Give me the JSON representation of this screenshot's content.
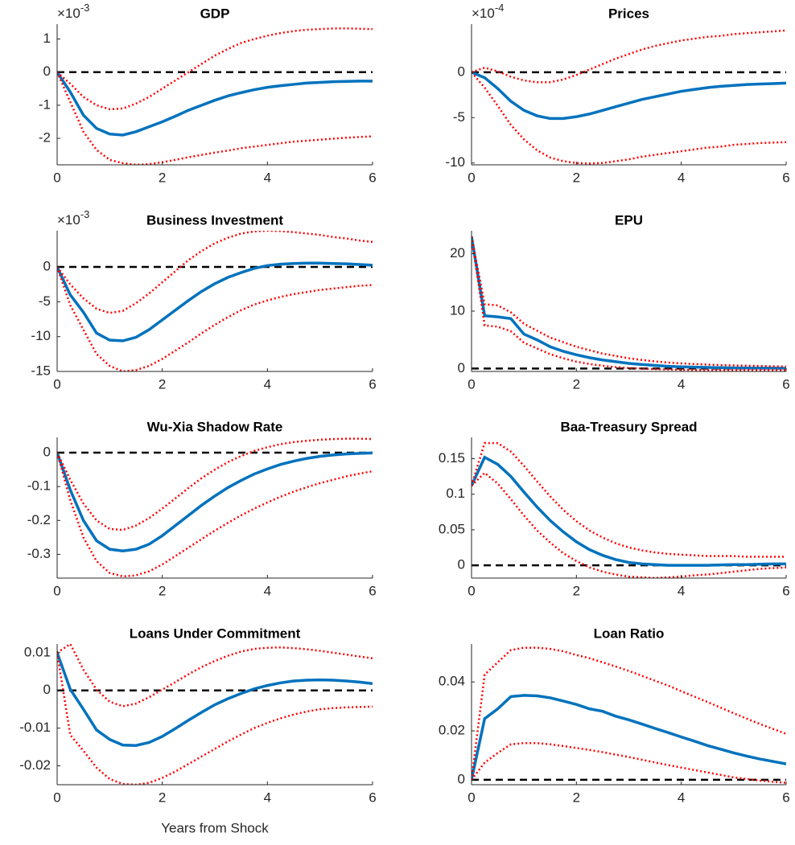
{
  "chart_data": [
    {
      "type": "line",
      "title": "GDP",
      "exponent_label": {
        "base": "×10",
        "power": "-3"
      },
      "x": [
        0,
        0.25,
        0.5,
        0.75,
        1,
        1.25,
        1.5,
        1.75,
        2,
        2.25,
        2.5,
        2.75,
        3,
        3.25,
        3.5,
        3.75,
        4,
        4.25,
        4.5,
        4.75,
        5,
        5.25,
        5.5,
        5.75,
        6
      ],
      "xlim": [
        0,
        6
      ],
      "xticks": [
        0,
        2,
        4,
        6
      ],
      "ylim": [
        -2.8,
        1.45
      ],
      "yticks": [
        -2,
        -1,
        0,
        1
      ],
      "hline": 0,
      "series": [
        {
          "color": "#0072bd",
          "style": "solid",
          "values": [
            0,
            -0.6,
            -1.3,
            -1.7,
            -1.87,
            -1.9,
            -1.8,
            -1.65,
            -1.5,
            -1.33,
            -1.15,
            -1.0,
            -0.85,
            -0.72,
            -0.62,
            -0.53,
            -0.46,
            -0.41,
            -0.37,
            -0.33,
            -0.31,
            -0.29,
            -0.28,
            -0.27,
            -0.27
          ]
        },
        {
          "color": "#ff0000",
          "style": "dotted",
          "values": [
            0,
            -0.35,
            -0.75,
            -1.0,
            -1.12,
            -1.1,
            -0.95,
            -0.75,
            -0.5,
            -0.25,
            0,
            0.25,
            0.5,
            0.7,
            0.88,
            1.0,
            1.1,
            1.18,
            1.24,
            1.28,
            1.3,
            1.32,
            1.32,
            1.31,
            1.3
          ]
        },
        {
          "color": "#ff0000",
          "style": "dotted",
          "values": [
            0,
            -0.9,
            -1.8,
            -2.35,
            -2.65,
            -2.75,
            -2.8,
            -2.78,
            -2.72,
            -2.65,
            -2.57,
            -2.5,
            -2.43,
            -2.37,
            -2.3,
            -2.25,
            -2.2,
            -2.15,
            -2.1,
            -2.07,
            -2.04,
            -2.01,
            -1.98,
            -1.96,
            -1.94
          ]
        }
      ]
    },
    {
      "type": "line",
      "title": "Prices",
      "exponent_label": {
        "base": "×10",
        "power": "-4"
      },
      "x": [
        0,
        0.25,
        0.5,
        0.75,
        1,
        1.25,
        1.5,
        1.75,
        2,
        2.25,
        2.5,
        2.75,
        3,
        3.25,
        3.5,
        3.75,
        4,
        4.25,
        4.5,
        4.75,
        5,
        5.25,
        5.5,
        5.75,
        6
      ],
      "xlim": [
        0,
        6
      ],
      "xticks": [
        0,
        2,
        4,
        6
      ],
      "ylim": [
        -10.2,
        5.3
      ],
      "yticks": [
        -10,
        -5,
        0
      ],
      "hline": 0,
      "series": [
        {
          "color": "#0072bd",
          "style": "solid",
          "values": [
            0,
            -0.6,
            -1.8,
            -3.2,
            -4.2,
            -4.8,
            -5.1,
            -5.1,
            -4.9,
            -4.6,
            -4.2,
            -3.8,
            -3.4,
            -3.0,
            -2.7,
            -2.4,
            -2.1,
            -1.9,
            -1.7,
            -1.55,
            -1.45,
            -1.35,
            -1.3,
            -1.25,
            -1.2
          ]
        },
        {
          "color": "#ff0000",
          "style": "dotted",
          "values": [
            0,
            0.5,
            0.1,
            -0.5,
            -0.9,
            -1.1,
            -1.1,
            -0.8,
            -0.3,
            0.3,
            0.9,
            1.5,
            2.0,
            2.5,
            2.9,
            3.2,
            3.5,
            3.7,
            3.9,
            4.0,
            4.2,
            4.3,
            4.4,
            4.5,
            4.6
          ]
        },
        {
          "color": "#ff0000",
          "style": "dotted",
          "values": [
            0,
            -1.7,
            -3.7,
            -5.8,
            -7.4,
            -8.6,
            -9.4,
            -9.8,
            -10.0,
            -10.05,
            -10.0,
            -9.8,
            -9.6,
            -9.3,
            -9.1,
            -8.9,
            -8.7,
            -8.5,
            -8.3,
            -8.2,
            -8.0,
            -7.9,
            -7.8,
            -7.75,
            -7.7
          ]
        }
      ]
    },
    {
      "type": "line",
      "title": "Business Investment",
      "exponent_label": {
        "base": "×10",
        "power": "-3"
      },
      "x": [
        0,
        0.25,
        0.5,
        0.75,
        1,
        1.25,
        1.5,
        1.75,
        2,
        2.25,
        2.5,
        2.75,
        3,
        3.25,
        3.5,
        3.75,
        4,
        4.25,
        4.5,
        4.75,
        5,
        5.25,
        5.5,
        5.75,
        6
      ],
      "xlim": [
        0,
        6
      ],
      "xticks": [
        0,
        2,
        4,
        6
      ],
      "ylim": [
        -15,
        5.2
      ],
      "yticks": [
        -15,
        -10,
        -5,
        0
      ],
      "hline": 0,
      "series": [
        {
          "color": "#0072bd",
          "style": "solid",
          "values": [
            0,
            -4,
            -6.5,
            -9.5,
            -10.5,
            -10.6,
            -10.1,
            -9.0,
            -7.6,
            -6.2,
            -4.8,
            -3.5,
            -2.4,
            -1.5,
            -0.8,
            -0.2,
            0.2,
            0.4,
            0.5,
            0.55,
            0.55,
            0.5,
            0.45,
            0.35,
            0.25
          ]
        },
        {
          "color": "#ff0000",
          "style": "dotted",
          "values": [
            0,
            -2.5,
            -4.5,
            -6.0,
            -6.6,
            -6.3,
            -5.2,
            -3.8,
            -2.2,
            -0.6,
            1.0,
            2.3,
            3.4,
            4.2,
            4.8,
            5.1,
            5.2,
            5.15,
            5.0,
            4.8,
            4.6,
            4.3,
            4.1,
            3.8,
            3.6
          ]
        },
        {
          "color": "#ff0000",
          "style": "dotted",
          "values": [
            0,
            -5.5,
            -9,
            -12.5,
            -14.2,
            -15,
            -14.8,
            -14.2,
            -13.2,
            -12,
            -10.8,
            -9.5,
            -8.3,
            -7.2,
            -6.2,
            -5.4,
            -4.8,
            -4.3,
            -3.9,
            -3.6,
            -3.3,
            -3.1,
            -2.9,
            -2.7,
            -2.6
          ]
        }
      ]
    },
    {
      "type": "line",
      "title": "EPU",
      "x": [
        0,
        0.25,
        0.5,
        0.75,
        1,
        1.25,
        1.5,
        1.75,
        2,
        2.25,
        2.5,
        2.75,
        3,
        3.25,
        3.5,
        3.75,
        4,
        4.25,
        4.5,
        4.75,
        5,
        5.25,
        5.5,
        5.75,
        6
      ],
      "xlim": [
        0,
        6
      ],
      "xticks": [
        0,
        2,
        4,
        6
      ],
      "ylim": [
        -0.5,
        24
      ],
      "yticks": [
        0,
        10,
        20
      ],
      "hline": 0,
      "series": [
        {
          "color": "#0072bd",
          "style": "solid",
          "values": [
            23,
            9.2,
            9.0,
            8.7,
            6.0,
            5.0,
            3.8,
            3.0,
            2.4,
            1.9,
            1.5,
            1.2,
            0.9,
            0.7,
            0.55,
            0.4,
            0.3,
            0.25,
            0.2,
            0.15,
            0.12,
            0.1,
            0.08,
            0.07,
            0.06
          ]
        },
        {
          "color": "#ff0000",
          "style": "dotted",
          "values": [
            23,
            11.2,
            11.0,
            9.8,
            7.8,
            6.6,
            5.4,
            4.6,
            3.8,
            3.2,
            2.6,
            2.2,
            1.8,
            1.5,
            1.25,
            1.05,
            0.9,
            0.8,
            0.7,
            0.6,
            0.55,
            0.5,
            0.45,
            0.4,
            0.35
          ]
        },
        {
          "color": "#ff0000",
          "style": "dotted",
          "values": [
            23,
            7.5,
            7.3,
            6.5,
            4.5,
            3.5,
            2.5,
            1.8,
            1.2,
            0.8,
            0.5,
            0.25,
            0.1,
            0,
            -0.1,
            -0.15,
            -0.2,
            -0.25,
            -0.25,
            -0.25,
            -0.25,
            -0.25,
            -0.25,
            -0.25,
            -0.25
          ]
        }
      ]
    },
    {
      "type": "line",
      "title": "Wu-Xia Shadow Rate",
      "x": [
        0,
        0.25,
        0.5,
        0.75,
        1,
        1.25,
        1.5,
        1.75,
        2,
        2.25,
        2.5,
        2.75,
        3,
        3.25,
        3.5,
        3.75,
        4,
        4.25,
        4.5,
        4.75,
        5,
        5.25,
        5.5,
        5.75,
        6
      ],
      "xlim": [
        0,
        6
      ],
      "xticks": [
        0,
        2,
        4,
        6
      ],
      "ylim": [
        -0.37,
        0.045
      ],
      "yticks": [
        -0.3,
        -0.2,
        -0.1,
        0
      ],
      "hline": 0,
      "series": [
        {
          "color": "#0072bd",
          "style": "solid",
          "values": [
            0,
            -0.11,
            -0.2,
            -0.26,
            -0.285,
            -0.29,
            -0.285,
            -0.27,
            -0.245,
            -0.215,
            -0.185,
            -0.155,
            -0.128,
            -0.103,
            -0.082,
            -0.063,
            -0.048,
            -0.035,
            -0.025,
            -0.017,
            -0.011,
            -0.007,
            -0.004,
            -0.002,
            -0.001
          ]
        },
        {
          "color": "#ff0000",
          "style": "dotted",
          "values": [
            0,
            -0.08,
            -0.15,
            -0.2,
            -0.225,
            -0.228,
            -0.215,
            -0.193,
            -0.165,
            -0.135,
            -0.104,
            -0.075,
            -0.05,
            -0.028,
            -0.01,
            0.005,
            0.016,
            0.025,
            0.031,
            0.035,
            0.038,
            0.04,
            0.041,
            0.041,
            0.04
          ]
        },
        {
          "color": "#ff0000",
          "style": "dotted",
          "values": [
            0,
            -0.14,
            -0.25,
            -0.32,
            -0.355,
            -0.365,
            -0.362,
            -0.35,
            -0.33,
            -0.305,
            -0.28,
            -0.255,
            -0.23,
            -0.207,
            -0.185,
            -0.165,
            -0.147,
            -0.13,
            -0.115,
            -0.102,
            -0.09,
            -0.08,
            -0.07,
            -0.062,
            -0.055
          ]
        }
      ]
    },
    {
      "type": "line",
      "title": "Baa-Treasury Spread",
      "x": [
        0,
        0.25,
        0.5,
        0.75,
        1,
        1.25,
        1.5,
        1.75,
        2,
        2.25,
        2.5,
        2.75,
        3,
        3.25,
        3.5,
        3.75,
        4,
        4.25,
        4.5,
        4.75,
        5,
        5.25,
        5.5,
        5.75,
        6
      ],
      "xlim": [
        0,
        6
      ],
      "xticks": [
        0,
        2,
        4,
        6
      ],
      "ylim": [
        -0.018,
        0.18
      ],
      "yticks": [
        0,
        0.05,
        0.1,
        0.15
      ],
      "hline": 0,
      "series": [
        {
          "color": "#0072bd",
          "style": "solid",
          "values": [
            0.112,
            0.152,
            0.142,
            0.125,
            0.103,
            0.082,
            0.063,
            0.047,
            0.033,
            0.022,
            0.014,
            0.008,
            0.004,
            0.002,
            0.001,
            0,
            0,
            0,
            0,
            0.0005,
            0.001,
            0.001,
            0.0015,
            0.002,
            0.002
          ]
        },
        {
          "color": "#ff0000",
          "style": "dotted",
          "values": [
            0.112,
            0.172,
            0.172,
            0.16,
            0.14,
            0.118,
            0.097,
            0.078,
            0.062,
            0.049,
            0.039,
            0.031,
            0.025,
            0.021,
            0.018,
            0.016,
            0.015,
            0.014,
            0.013,
            0.013,
            0.013,
            0.012,
            0.012,
            0.012,
            0.012
          ]
        },
        {
          "color": "#ff0000",
          "style": "dotted",
          "values": [
            0.112,
            0.13,
            0.115,
            0.093,
            0.07,
            0.049,
            0.032,
            0.017,
            0.006,
            -0.003,
            -0.009,
            -0.013,
            -0.016,
            -0.017,
            -0.018,
            -0.017,
            -0.016,
            -0.014,
            -0.013,
            -0.011,
            -0.009,
            -0.007,
            -0.005,
            -0.004,
            -0.003
          ]
        }
      ]
    },
    {
      "type": "line",
      "title": "Loans Under Commitment",
      "xlabel": "Years from Shock",
      "x": [
        0,
        0.25,
        0.5,
        0.75,
        1,
        1.25,
        1.5,
        1.75,
        2,
        2.25,
        2.5,
        2.75,
        3,
        3.25,
        3.5,
        3.75,
        4,
        4.25,
        4.5,
        4.75,
        5,
        5.25,
        5.5,
        5.75,
        6
      ],
      "xlim": [
        0,
        6
      ],
      "xticks": [
        0,
        2,
        4,
        6
      ],
      "ylim": [
        -0.025,
        0.0123
      ],
      "yticks": [
        -0.02,
        -0.01,
        0,
        0.01
      ],
      "hline": 0,
      "series": [
        {
          "color": "#0072bd",
          "style": "solid",
          "values": [
            0.01,
            0.0003,
            -0.005,
            -0.0105,
            -0.013,
            -0.0145,
            -0.0146,
            -0.0138,
            -0.0122,
            -0.0101,
            -0.0079,
            -0.0058,
            -0.0038,
            -0.0022,
            -0.0008,
            0.0004,
            0.0013,
            0.002,
            0.0025,
            0.0027,
            0.0028,
            0.0027,
            0.0025,
            0.0022,
            0.0018
          ]
        },
        {
          "color": "#ff0000",
          "style": "dotted",
          "values": [
            0.01,
            0.0123,
            0.0055,
            0.0002,
            -0.003,
            -0.0042,
            -0.0035,
            -0.0018,
            0.0002,
            0.0022,
            0.0043,
            0.0062,
            0.0078,
            0.0092,
            0.0103,
            0.011,
            0.0113,
            0.0114,
            0.0112,
            0.0109,
            0.0105,
            0.01,
            0.0095,
            0.009,
            0.0085
          ]
        },
        {
          "color": "#ff0000",
          "style": "dotted",
          "values": [
            0.01,
            -0.0118,
            -0.016,
            -0.0205,
            -0.0235,
            -0.0248,
            -0.025,
            -0.0245,
            -0.0232,
            -0.0215,
            -0.0195,
            -0.0175,
            -0.0155,
            -0.0135,
            -0.0117,
            -0.01,
            -0.0086,
            -0.0074,
            -0.0064,
            -0.0056,
            -0.005,
            -0.0047,
            -0.0045,
            -0.0044,
            -0.0043
          ]
        }
      ]
    },
    {
      "type": "line",
      "title": "Loan Ratio",
      "x": [
        0,
        0.25,
        0.5,
        0.75,
        1,
        1.25,
        1.5,
        1.75,
        2,
        2.25,
        2.5,
        2.75,
        3,
        3.25,
        3.5,
        3.75,
        4,
        4.25,
        4.5,
        4.75,
        5,
        5.25,
        5.5,
        5.75,
        6
      ],
      "xlim": [
        0,
        6
      ],
      "xticks": [
        0,
        2,
        4,
        6
      ],
      "ylim": [
        -0.002,
        0.0555
      ],
      "yticks": [
        0,
        0.02,
        0.04
      ],
      "hline": 0,
      "series": [
        {
          "color": "#0072bd",
          "style": "solid",
          "values": [
            0,
            0.025,
            0.029,
            0.034,
            0.0345,
            0.0343,
            0.0335,
            0.0322,
            0.0308,
            0.029,
            0.028,
            0.026,
            0.0245,
            0.0228,
            0.021,
            0.0193,
            0.0175,
            0.0158,
            0.014,
            0.0125,
            0.011,
            0.0097,
            0.0085,
            0.0075,
            0.0065
          ]
        },
        {
          "color": "#ff0000",
          "style": "dotted",
          "values": [
            0,
            0.043,
            0.048,
            0.053,
            0.054,
            0.054,
            0.0535,
            0.0525,
            0.051,
            0.0497,
            0.048,
            0.0463,
            0.0445,
            0.0425,
            0.0405,
            0.0385,
            0.0362,
            0.034,
            0.0318,
            0.0295,
            0.0272,
            0.025,
            0.0228,
            0.0208,
            0.0188
          ]
        },
        {
          "color": "#ff0000",
          "style": "dotted",
          "values": [
            0,
            0.007,
            0.011,
            0.0145,
            0.015,
            0.015,
            0.0145,
            0.0138,
            0.013,
            0.0122,
            0.0113,
            0.0103,
            0.0093,
            0.0082,
            0.0071,
            0.006,
            0.005,
            0.004,
            0.003,
            0.002,
            0.001,
            0.0003,
            -0.0003,
            -0.0008,
            -0.0012
          ]
        }
      ]
    }
  ]
}
